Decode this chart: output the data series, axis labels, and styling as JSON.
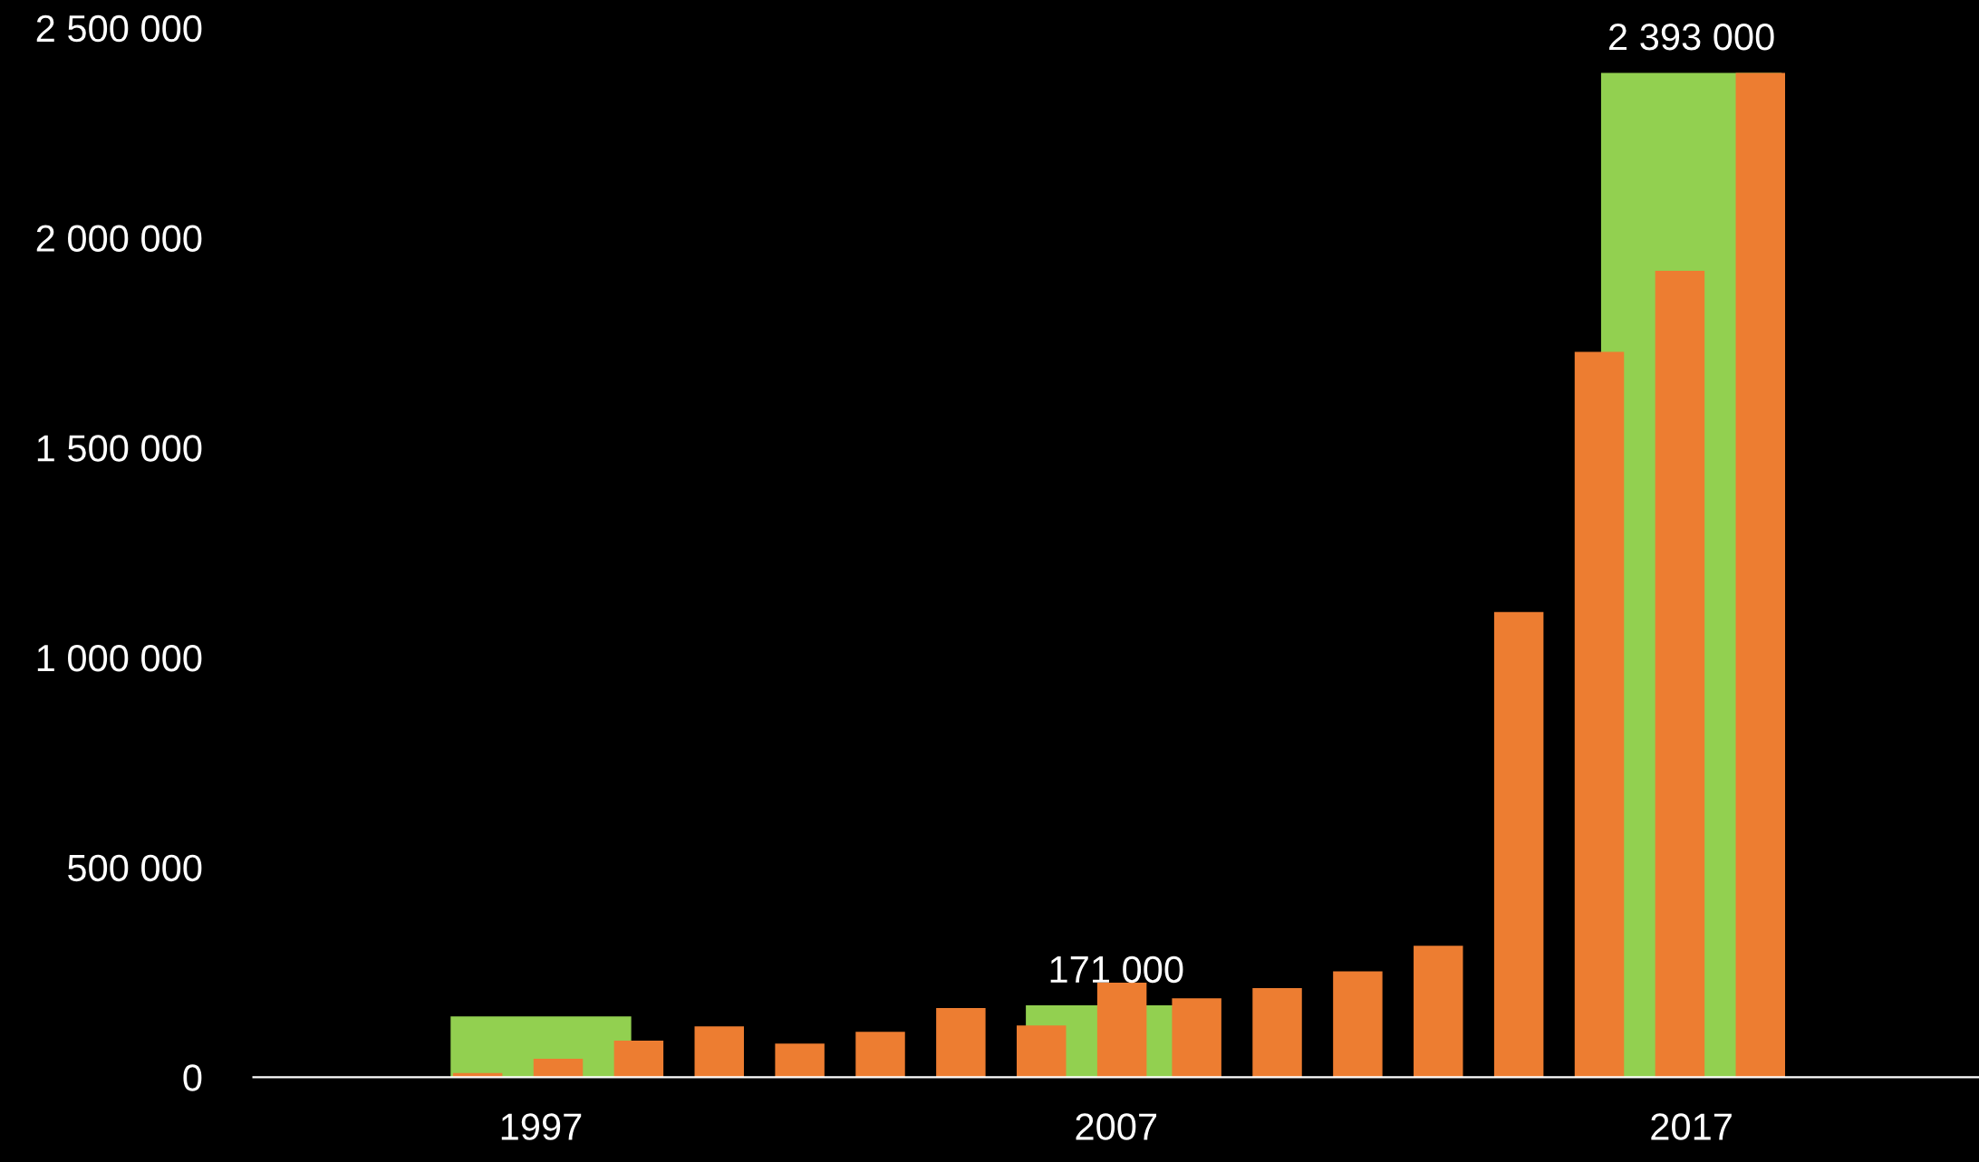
{
  "chart_data": {
    "type": "bar",
    "series": [
      {
        "color": "#92d050",
        "x": [
          1997,
          2007,
          2017
        ],
        "values": [
          145000,
          171000,
          2393000
        ],
        "value_labels": [
          null,
          "171 000",
          "2 393 000"
        ]
      },
      {
        "color": "#ed7d31",
        "x": [
          1995.9,
          1997.3,
          1998.7,
          2000.1,
          2001.5,
          2002.9,
          2004.3,
          2005.7,
          2007.1,
          2008.4,
          2009.8,
          2011.2,
          2012.6,
          2014.0,
          2015.4,
          2016.8,
          2018.2
        ],
        "values": [
          10000,
          44000,
          87000,
          121000,
          80000,
          108000,
          165000,
          123000,
          225000,
          188000,
          212000,
          252000,
          313000,
          1108000,
          1728000,
          1921000,
          2393000
        ]
      }
    ],
    "xlim": [
      1992,
      2022
    ],
    "xticks": [
      1997,
      2007,
      2017
    ],
    "ylim": [
      0,
      2500000
    ],
    "yticks": [
      0,
      {
        "value": 500000,
        "label": "500 000"
      },
      {
        "value": 1000000,
        "label": "1 000 000"
      },
      {
        "value": 1500000,
        "label": "1 500 000"
      },
      {
        "value": 2000000,
        "label": "2 000 000"
      },
      {
        "value": 2500000,
        "label": "2 500 000"
      }
    ]
  }
}
